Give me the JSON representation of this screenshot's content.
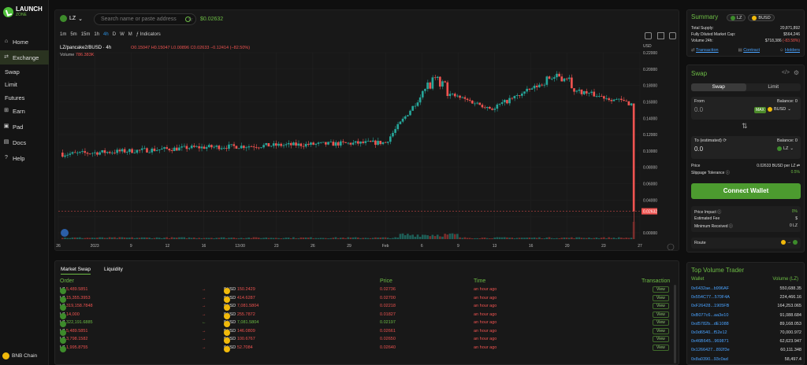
{
  "brand": {
    "line1": "LAUNCH",
    "line2": "ZONE"
  },
  "nav": [
    {
      "label": "Home",
      "icon": "home-icon"
    },
    {
      "label": "Exchange",
      "icon": "exchange-icon"
    },
    {
      "label": "Swap"
    },
    {
      "label": "Limit"
    },
    {
      "label": "Futures"
    },
    {
      "label": "Earn",
      "icon": "earn-icon"
    },
    {
      "label": "Pad",
      "icon": "pad-icon"
    },
    {
      "label": "Docs",
      "icon": "docs-icon"
    },
    {
      "label": "Help",
      "icon": "help-icon"
    }
  ],
  "chain": "BNB Chain",
  "header": {
    "token": "LZ",
    "search_placeholder": "Search name or paste address",
    "price": "$0.02632"
  },
  "timeframes": [
    "1m",
    "5m",
    "15m",
    "1h",
    "4h",
    "D",
    "W",
    "M"
  ],
  "indicators": "Indicators",
  "pair": "LZ/pancake2/BUSD · 4h",
  "ohlc": {
    "o": "O0.15047",
    "h": "H0.15047",
    "l": "L0.00896",
    "c": "C0.02633",
    "chg": "−0.12414 (−82.50%)"
  },
  "volume_label": "Volume",
  "volume_value": "786.383K",
  "chart_data": {
    "type": "candlestick",
    "xlabels": [
      "26",
      "2023",
      "9",
      "12",
      "16",
      "13:00",
      "23",
      "26",
      "29",
      "Feb",
      "6",
      "9",
      "13",
      "16",
      "20",
      "23",
      "27"
    ],
    "ylabels": [
      "USD",
      "0.22000",
      "0.20000",
      "0.18000",
      "0.16000",
      "0.14000",
      "0.12000",
      "0.10000",
      "0.08000",
      "0.06000",
      "0.04000",
      "0.02632",
      "0.00000"
    ],
    "last_price": "0.02632",
    "ylim": [
      0,
      0.22
    ]
  },
  "summary": {
    "title": "Summary",
    "tok1": "LZ",
    "tok2": "BUSD",
    "rows": [
      {
        "k": "Total Supply:",
        "v": "20,871,892"
      },
      {
        "k": "Fully Diluted Market Cap:",
        "v": "$564,246"
      },
      {
        "k": "Volume 24h:",
        "v": "$718,386",
        "chg": "(-83.58%)"
      }
    ],
    "links": [
      "Transaction",
      "Contract",
      "Holders"
    ]
  },
  "swap": {
    "title": "Swap",
    "tabs": [
      "Swap",
      "Limit"
    ],
    "from_label": "From",
    "from_balance": "Balance: 0",
    "from_value": "0.0",
    "max": "MAX",
    "from_token": "BUSD",
    "to_label": "To (estimated)",
    "to_balance": "Balance: 0",
    "to_value": "0.0",
    "to_token": "LZ",
    "price_label": "Price",
    "price_value": "0.02633 BUSD per LZ",
    "slip_label": "Slippage Tolerance",
    "slip_value": "0.5%",
    "connect": "Connect Wallet",
    "impact_label": "Price Impact",
    "impact_value": "0%",
    "fee_label": "Estimated Fee",
    "fee_value": "$",
    "min_label": "Minimum Received",
    "min_value": "0 LZ",
    "route_label": "Route"
  },
  "trades": {
    "tabs": [
      "Market Swap",
      "Liquidity"
    ],
    "cols": [
      "Order",
      "Price",
      "Time",
      "Transaction"
    ],
    "rows": [
      {
        "a": "LZ",
        "av": "5,489.5851",
        "ac": "#ef5350",
        "dir": "→",
        "b": "BUSD",
        "bv": "150.2429",
        "price": "0.02736",
        "pc": "#ef5350",
        "time": "an hour ago"
      },
      {
        "a": "LZ",
        "av": "15,355.3953",
        "ac": "#ef5350",
        "dir": "→",
        "b": "BUSD",
        "bv": "414.6287",
        "price": "0.02700",
        "pc": "#ef5350",
        "time": "an hour ago"
      },
      {
        "a": "LZ",
        "av": "319,158.7848",
        "ac": "#ef5350",
        "dir": "→",
        "b": "BUSD",
        "bv": "7,081.5804",
        "price": "0.02218",
        "pc": "#ef5350",
        "time": "an hour ago"
      },
      {
        "a": "LZ",
        "av": "14,000",
        "ac": "#ef5350",
        "dir": "→",
        "b": "BUSD",
        "bv": "255.7872",
        "price": "0.01827",
        "pc": "#ef5350",
        "time": "an hour ago"
      },
      {
        "a": "LZ",
        "av": "322,191.6885",
        "ac": "#6dbd45",
        "dir": "←",
        "b": "BUSD",
        "bv": "7,081.5804",
        "price": "0.02197",
        "pc": "#6dbd45",
        "time": "an hour ago"
      },
      {
        "a": "LZ",
        "av": "5,489.5851",
        "ac": "#ef5350",
        "dir": "→",
        "b": "BUSD",
        "bv": "146.0809",
        "price": "0.02661",
        "pc": "#ef5350",
        "time": "an hour ago"
      },
      {
        "a": "LZ",
        "av": "3,798.1582",
        "ac": "#ef5350",
        "dir": "→",
        "b": "BUSD",
        "bv": "100.6767",
        "price": "0.02650",
        "pc": "#ef5350",
        "time": "an hour ago"
      },
      {
        "a": "LZ",
        "av": "1,995.8755",
        "ac": "#ef5350",
        "dir": "→",
        "b": "BUSD",
        "bv": "52.7084",
        "price": "0.02640",
        "pc": "#ef5350",
        "time": "an hour ago"
      }
    ],
    "view": "View"
  },
  "topvol": {
    "title": "Top Volume Trader",
    "cols": [
      "Wallet",
      "Volume (LZ)"
    ],
    "rows": [
      {
        "w": "0x6432ae...b996AF",
        "v": "550,688.35"
      },
      {
        "w": "0x554C77...570F4A",
        "v": "224,466.16"
      },
      {
        "w": "0xF26428...1905FB",
        "v": "164,253.065"
      },
      {
        "w": "0xB077c6...aa3e10",
        "v": "91,088.684"
      },
      {
        "w": "0xd5782b...dE1088",
        "v": "89,168.053"
      },
      {
        "w": "0x0d6540...f52e12",
        "v": "70,000.972"
      },
      {
        "w": "0x46B645...969871",
        "v": "62,623.947"
      },
      {
        "w": "0x1266427...892f3e",
        "v": "60,111.348"
      },
      {
        "w": "0x8a0390...93c0ad",
        "v": "58,497.4"
      }
    ]
  }
}
